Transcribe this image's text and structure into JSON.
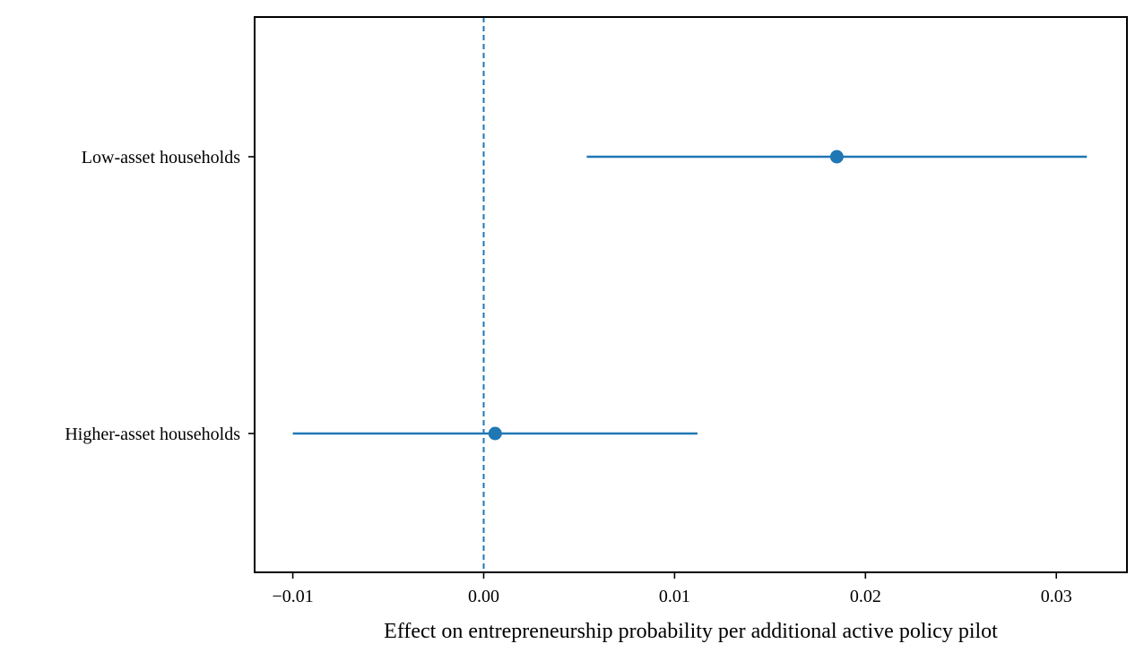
{
  "chart_data": {
    "type": "forest",
    "title": "",
    "xlabel": "Effect on entrepreneurship probability per additional active policy pilot",
    "ylabel": "",
    "xlim": [
      -0.012,
      0.0337
    ],
    "xticks": [
      -0.01,
      0.0,
      0.01,
      0.02,
      0.03
    ],
    "xtick_labels": [
      "−0.01",
      "0.00",
      "0.01",
      "0.02",
      "0.03"
    ],
    "reference_line_x": 0,
    "grid": false,
    "legend": "none",
    "color": "#1f77b4",
    "series": [
      {
        "label": "Low-asset households",
        "estimate": 0.0185,
        "ci_low": 0.0054,
        "ci_high": 0.0316
      },
      {
        "label": "Higher-asset households",
        "estimate": 0.0006,
        "ci_low": -0.01,
        "ci_high": 0.0112
      }
    ]
  }
}
